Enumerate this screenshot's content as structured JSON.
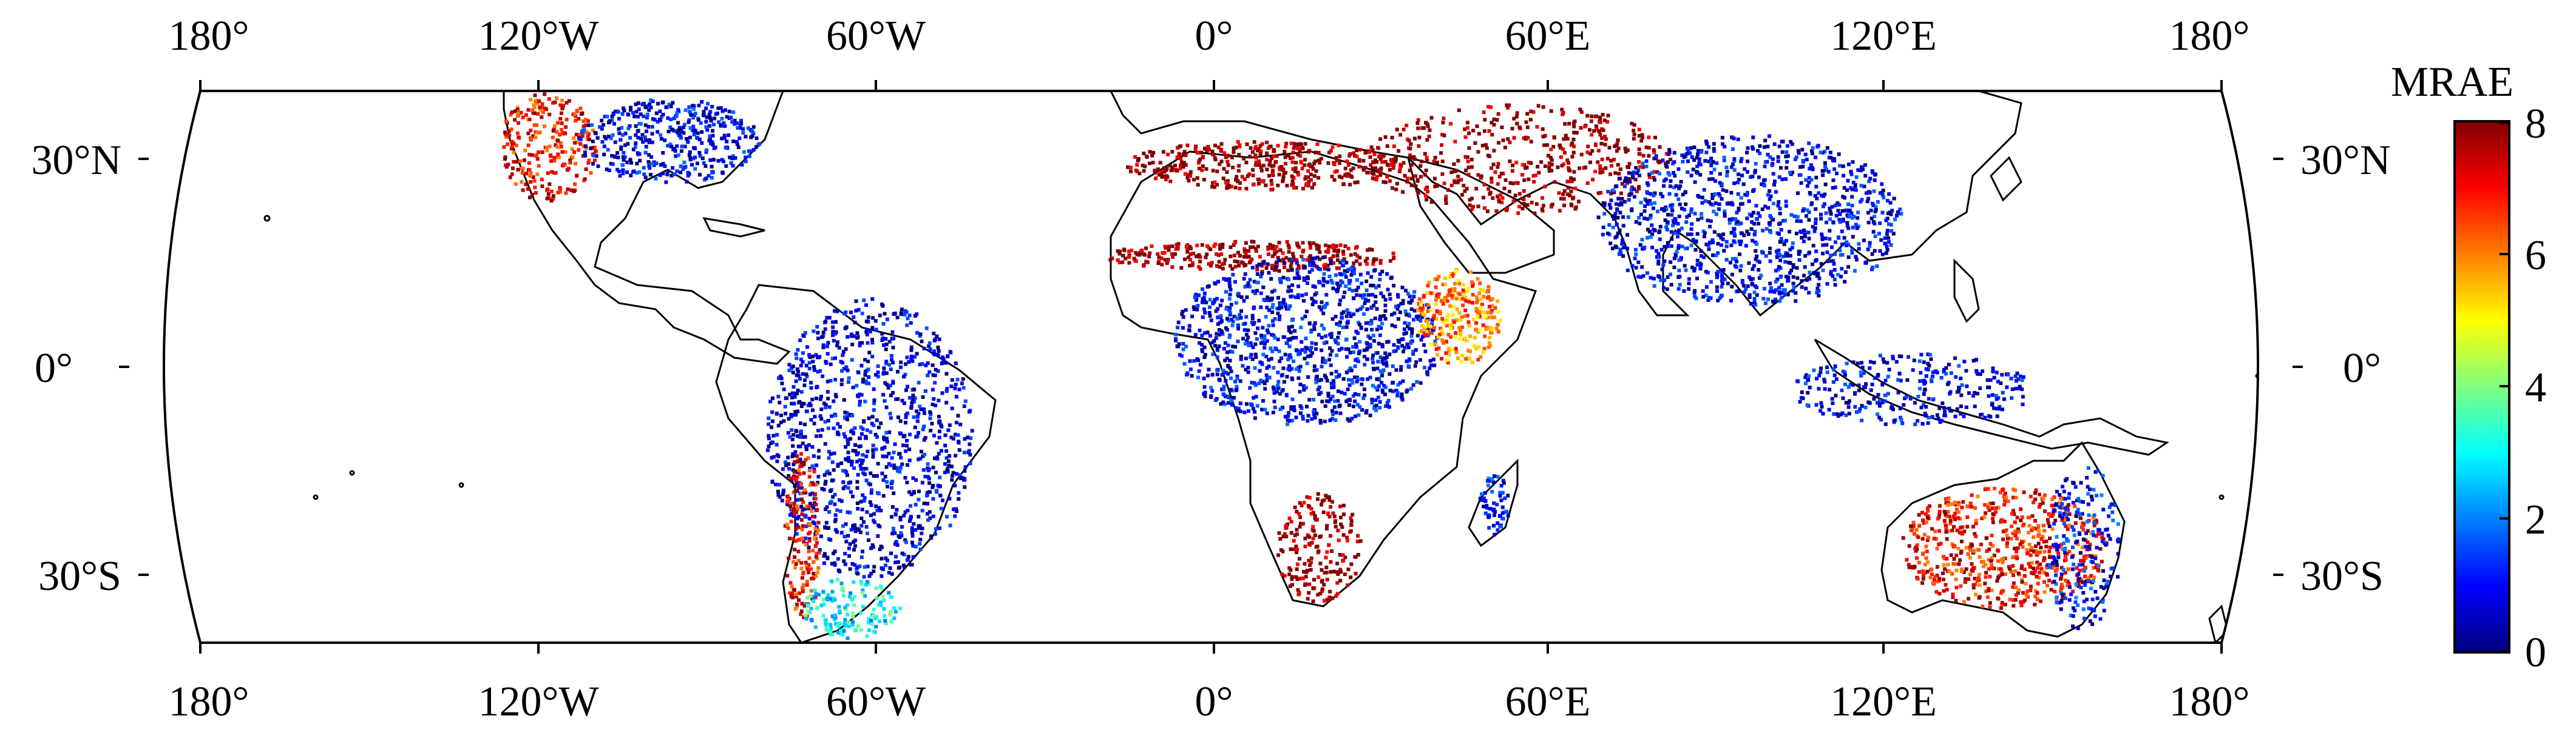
{
  "colorbar": {
    "title": "MRAE",
    "ticks": [
      "0",
      "2",
      "4",
      "6",
      "8"
    ],
    "min": 0,
    "max": 8,
    "colormap": "jet",
    "stops": [
      "#00007f",
      "#0000ff",
      "#007fff",
      "#00ffff",
      "#7fff7f",
      "#ffff00",
      "#ff7f00",
      "#ff0000",
      "#7f0000"
    ]
  },
  "axes": {
    "lon_labels_top": [
      "180°",
      "120°W",
      "60°W",
      "0°",
      "60°E",
      "120°E",
      "180°"
    ],
    "lon_labels_bottom": [
      "180°",
      "120°W",
      "60°W",
      "0°",
      "60°E",
      "120°E",
      "180°"
    ],
    "lat_labels_left": [
      "30°N",
      "0°",
      "30°S"
    ],
    "lat_labels_right": [
      "30°N",
      "0°",
      "30°S"
    ],
    "lon_range": [
      -180,
      180
    ],
    "lat_range": [
      -50,
      50
    ]
  },
  "map": {
    "projection": "Robinson-like (curved left/right edges)",
    "data_description_regions": [
      {
        "region": "Western North America / Mexico",
        "mrae_level": "high",
        "approx": 7
      },
      {
        "region": "Eastern United States",
        "mrae_level": "low",
        "approx": 0.8
      },
      {
        "region": "Amazon / Brazil",
        "mrae_level": "low",
        "approx": 0.6
      },
      {
        "region": "Atacama / Andes",
        "mrae_level": "high",
        "approx": 7
      },
      {
        "region": "Patagonia",
        "mrae_level": "moderate",
        "approx": 3
      },
      {
        "region": "Sahara margin / Sahel",
        "mrae_level": "very high",
        "approx": 8
      },
      {
        "region": "Central Africa",
        "mrae_level": "low",
        "approx": 0.8
      },
      {
        "region": "Horn of Africa",
        "mrae_level": "high",
        "approx": 6
      },
      {
        "region": "Namib / Southwest Africa",
        "mrae_level": "very high",
        "approx": 8
      },
      {
        "region": "Madagascar",
        "mrae_level": "low",
        "approx": 1
      },
      {
        "region": "Arabian Peninsula / Middle East",
        "mrae_level": "very high",
        "approx": 8
      },
      {
        "region": "India / Southeast Asia",
        "mrae_level": "low",
        "approx": 0.8
      },
      {
        "region": "Australian interior",
        "mrae_level": "high",
        "approx": 7
      },
      {
        "region": "Australian east coast",
        "mrae_level": "low",
        "approx": 1
      }
    ]
  }
}
